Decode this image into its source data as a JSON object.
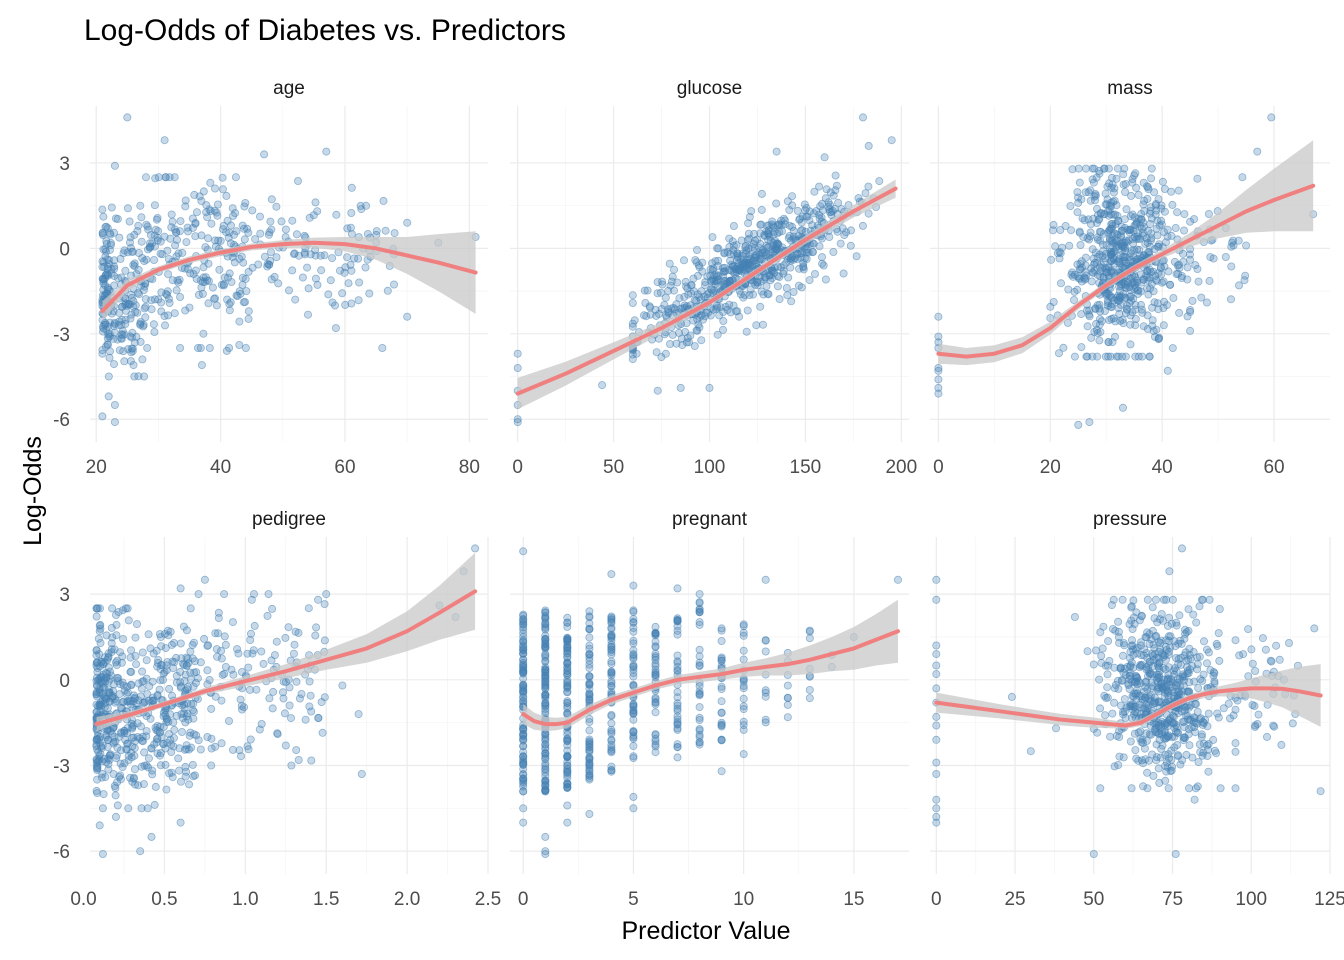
{
  "chart_data": {
    "type": "scatter",
    "title": "Log-Odds of Diabetes vs. Predictors",
    "xlabel": "Predictor Value",
    "ylabel": "Log-Odds",
    "grid": true,
    "legend": "none",
    "colors": {
      "points": "#4682b4",
      "smooth": "#f08080",
      "band": "#c8c8c8"
    },
    "y_ticks": [
      -6,
      -3,
      0,
      3
    ],
    "panels": [
      {
        "name": "age",
        "xlim": [
          19,
          83
        ],
        "x_ticks": [
          20,
          40,
          60,
          80
        ],
        "x_tick_labels": [
          "20",
          "40",
          "60",
          "80"
        ],
        "smooth": {
          "x": [
            21,
            25,
            30,
            35,
            40,
            45,
            50,
            55,
            60,
            65,
            70,
            75,
            81
          ],
          "y": [
            -2.2,
            -1.3,
            -0.75,
            -0.4,
            -0.15,
            0.05,
            0.15,
            0.2,
            0.15,
            0,
            -0.25,
            -0.5,
            -0.85
          ]
        },
        "band": [
          0.35,
          0.2,
          0.12,
          0.12,
          0.12,
          0.12,
          0.14,
          0.18,
          0.25,
          0.4,
          0.65,
          1.0,
          1.45
        ],
        "clouds": [
          {
            "x": [
              21,
              28
            ],
            "y": [
              -4.5,
              1.5
            ],
            "n": 220,
            "x_shape": "skew-low"
          },
          {
            "x": [
              28,
              45
            ],
            "y": [
              -3.5,
              2.5
            ],
            "n": 220
          },
          {
            "x": [
              45,
              68
            ],
            "y": [
              -2.8,
              2.5
            ],
            "n": 110
          }
        ],
        "points": [
          [
            25,
            4.6
          ],
          [
            31,
            3.8
          ],
          [
            57,
            3.4
          ],
          [
            47,
            3.3
          ],
          [
            23,
            2.9
          ],
          [
            75,
            0.2
          ],
          [
            81,
            0.4
          ],
          [
            70,
            0.9
          ],
          [
            66,
            -3.5
          ],
          [
            70,
            -2.4
          ],
          [
            52,
            -1.8
          ],
          [
            58,
            -1.9
          ],
          [
            37,
            -4.1
          ],
          [
            22,
            -5.2
          ],
          [
            23,
            -6.1
          ],
          [
            21,
            -5.9
          ],
          [
            23,
            -5.5
          ],
          [
            41,
            -3.6
          ],
          [
            26,
            -4.1
          ]
        ]
      },
      {
        "name": "glucose",
        "xlim": [
          -4,
          204
        ],
        "x_ticks": [
          0,
          50,
          100,
          150,
          200
        ],
        "x_tick_labels": [
          "0",
          "50",
          "100",
          "150",
          "200"
        ],
        "smooth": {
          "x": [
            0,
            25,
            50,
            75,
            100,
            125,
            150,
            175,
            197
          ],
          "y": [
            -5.1,
            -4.4,
            -3.6,
            -2.8,
            -1.9,
            -0.8,
            0.3,
            1.3,
            2.1
          ]
        },
        "band": [
          0.55,
          0.42,
          0.3,
          0.2,
          0.12,
          0.12,
          0.15,
          0.22,
          0.32
        ],
        "linear_cloud": {
          "x": [
            60,
            198
          ],
          "n": 650,
          "intercept": -5.1,
          "slope": 0.0365,
          "sd": 0.75
        },
        "points": [
          [
            0,
            -3.7
          ],
          [
            0,
            -4.2
          ],
          [
            0,
            -5.5
          ],
          [
            0,
            -6.1
          ],
          [
            0,
            -6.0
          ],
          [
            0,
            -5.0
          ],
          [
            44,
            -4.8
          ],
          [
            62,
            -3.7
          ],
          [
            70,
            -3.2
          ],
          [
            73,
            -5.0
          ],
          [
            85,
            -4.9
          ],
          [
            100,
            -4.9
          ],
          [
            180,
            4.6
          ],
          [
            160,
            3.2
          ],
          [
            135,
            3.4
          ],
          [
            183,
            3.6
          ],
          [
            195,
            3.8
          ],
          [
            140,
            -0.5
          ],
          [
            155,
            -0.9
          ],
          [
            120,
            0.3
          ]
        ]
      },
      {
        "name": "mass",
        "xlim": [
          -1.5,
          70
        ],
        "x_ticks": [
          0,
          20,
          40,
          60
        ],
        "x_tick_labels": [
          "0",
          "20",
          "40",
          "60"
        ],
        "smooth": {
          "x": [
            0,
            5,
            10,
            15,
            20,
            25,
            30,
            35,
            40,
            45,
            50,
            55,
            60,
            67
          ],
          "y": [
            -3.7,
            -3.8,
            -3.7,
            -3.4,
            -2.8,
            -2.0,
            -1.3,
            -0.7,
            -0.2,
            0.3,
            0.8,
            1.3,
            1.7,
            2.2
          ]
        },
        "band": [
          0.35,
          0.3,
          0.3,
          0.28,
          0.22,
          0.15,
          0.12,
          0.12,
          0.15,
          0.25,
          0.45,
          0.75,
          1.1,
          1.6
        ],
        "clouds": [
          {
            "x": [
              20,
              45
            ],
            "y": [
              -3.8,
              2.8
            ],
            "n": 620,
            "x_shape": "center"
          },
          {
            "x": [
              42,
              55
            ],
            "y": [
              -2.5,
              2.5
            ],
            "n": 40
          }
        ],
        "points": [
          [
            0,
            -2.4
          ],
          [
            0,
            -3.1
          ],
          [
            0,
            -3.3
          ],
          [
            0,
            -4.2
          ],
          [
            0,
            -4.9
          ],
          [
            0,
            -4.6
          ],
          [
            0,
            -5.1
          ],
          [
            0,
            -3.5
          ],
          [
            0,
            -4.3
          ],
          [
            59.5,
            4.6
          ],
          [
            57,
            3.4
          ],
          [
            67,
            1.2
          ],
          [
            52.5,
            0.2
          ],
          [
            55,
            0.1
          ],
          [
            49,
            0.3
          ],
          [
            27,
            -6.1
          ],
          [
            33,
            -5.6
          ],
          [
            25,
            -6.2
          ],
          [
            41,
            -4.3
          ],
          [
            48,
            -1.9
          ],
          [
            45,
            -2.9
          ]
        ]
      },
      {
        "name": "pedigree",
        "xlim": [
          0.04,
          2.5
        ],
        "x_ticks": [
          0,
          0.5,
          1.0,
          1.5,
          2.0,
          2.5
        ],
        "x_tick_labels": [
          "0.0",
          "0.5",
          "1.0",
          "1.5",
          "2.0",
          "2.5"
        ],
        "smooth": {
          "x": [
            0.08,
            0.3,
            0.5,
            0.75,
            1.0,
            1.25,
            1.5,
            1.75,
            2.0,
            2.2,
            2.42
          ],
          "y": [
            -1.55,
            -1.2,
            -0.85,
            -0.4,
            -0.05,
            0.3,
            0.7,
            1.1,
            1.7,
            2.35,
            3.1
          ]
        },
        "band": [
          0.25,
          0.12,
          0.1,
          0.12,
          0.18,
          0.25,
          0.35,
          0.5,
          0.7,
          0.95,
          1.35
        ],
        "clouds": [
          {
            "x": [
              0.08,
              0.7
            ],
            "y": [
              -4.5,
              2.5
            ],
            "n": 520,
            "x_shape": "skew-low"
          },
          {
            "x": [
              0.6,
              1.5
            ],
            "y": [
              -3.0,
              3.0
            ],
            "n": 150
          }
        ],
        "points": [
          [
            2.42,
            4.6
          ],
          [
            2.35,
            3.8
          ],
          [
            2.2,
            2.6
          ],
          [
            2.3,
            2.2
          ],
          [
            1.5,
            3.0
          ],
          [
            1.45,
            2.8
          ],
          [
            1.72,
            -3.3
          ],
          [
            1.7,
            -1.2
          ],
          [
            1.6,
            -0.2
          ],
          [
            1.2,
            -1.9
          ],
          [
            1.25,
            -2.3
          ],
          [
            0.12,
            -6.1
          ],
          [
            0.35,
            -6.0
          ],
          [
            0.42,
            -5.5
          ],
          [
            0.6,
            -5.0
          ],
          [
            0.1,
            -5.1
          ],
          [
            0.2,
            -4.8
          ],
          [
            0.75,
            3.5
          ],
          [
            0.6,
            3.2
          ]
        ]
      },
      {
        "name": "pregnant",
        "xlim": [
          -0.6,
          17.5
        ],
        "x_ticks": [
          0,
          5,
          10,
          15
        ],
        "x_tick_labels": [
          "0",
          "5",
          "10",
          "15"
        ],
        "smooth": {
          "x": [
            0,
            0.5,
            1,
            1.5,
            2,
            3,
            4,
            5,
            6,
            7,
            8,
            9,
            10,
            11,
            12,
            13,
            14,
            15,
            16,
            17
          ],
          "y": [
            -1.2,
            -1.45,
            -1.55,
            -1.55,
            -1.5,
            -1.05,
            -0.7,
            -0.45,
            -0.2,
            0,
            0.1,
            0.2,
            0.35,
            0.45,
            0.55,
            0.7,
            0.9,
            1.1,
            1.4,
            1.7
          ]
        },
        "band": [
          0.35,
          0.3,
          0.25,
          0.22,
          0.2,
          0.18,
          0.16,
          0.15,
          0.15,
          0.16,
          0.18,
          0.2,
          0.25,
          0.3,
          0.4,
          0.5,
          0.6,
          0.75,
          0.9,
          1.1
        ],
        "columns": [
          {
            "x": 0,
            "n": 95,
            "y": [
              -4.0,
              2.3
            ]
          },
          {
            "x": 1,
            "n": 110,
            "y": [
              -4.0,
              2.5
            ]
          },
          {
            "x": 2,
            "n": 90,
            "y": [
              -3.8,
              2.2
            ]
          },
          {
            "x": 3,
            "n": 65,
            "y": [
              -3.5,
              2.5
            ]
          },
          {
            "x": 4,
            "n": 55,
            "y": [
              -3.3,
              2.3
            ]
          },
          {
            "x": 5,
            "n": 45,
            "y": [
              -3.0,
              2.5
            ]
          },
          {
            "x": 6,
            "n": 40,
            "y": [
              -2.6,
              2.0
            ]
          },
          {
            "x": 7,
            "n": 35,
            "y": [
              -2.8,
              2.8
            ]
          },
          {
            "x": 8,
            "n": 30,
            "y": [
              -2.3,
              2.8
            ]
          },
          {
            "x": 9,
            "n": 25,
            "y": [
              -2.2,
              2.2
            ]
          },
          {
            "x": 10,
            "n": 18,
            "y": [
              -1.8,
              2.0
            ]
          },
          {
            "x": 11,
            "n": 9,
            "y": [
              -1.5,
              1.5
            ]
          },
          {
            "x": 12,
            "n": 8,
            "y": [
              -1.4,
              1.3
            ]
          },
          {
            "x": 13,
            "n": 8,
            "y": [
              -1.0,
              2.0
            ]
          },
          {
            "x": 14,
            "n": 2,
            "y": [
              0.0,
              1.0
            ]
          },
          {
            "x": 15,
            "n": 1,
            "y": [
              1.5,
              1.5
            ]
          },
          {
            "x": 17,
            "n": 1,
            "y": [
              3.5,
              3.5
            ]
          }
        ],
        "points": [
          [
            0,
            4.5
          ],
          [
            0,
            -4.5
          ],
          [
            0,
            -5.0
          ],
          [
            1,
            -5.5
          ],
          [
            1,
            -6.0
          ],
          [
            1,
            -6.1
          ],
          [
            2,
            -4.4
          ],
          [
            2,
            -5.0
          ],
          [
            3,
            -4.7
          ],
          [
            5,
            -4.5
          ],
          [
            5,
            -4.1
          ],
          [
            4,
            3.7
          ],
          [
            5,
            3.3
          ],
          [
            7,
            3.2
          ],
          [
            8,
            3.0
          ],
          [
            11,
            3.5
          ],
          [
            9,
            -3.2
          ],
          [
            10,
            -2.6
          ]
        ]
      },
      {
        "name": "pressure",
        "xlim": [
          -2,
          125
        ],
        "x_ticks": [
          0,
          25,
          50,
          75,
          100,
          125
        ],
        "x_tick_labels": [
          "0",
          "25",
          "50",
          "75",
          "100",
          "125"
        ],
        "smooth": {
          "x": [
            0,
            10,
            20,
            30,
            40,
            50,
            55,
            60,
            65,
            70,
            75,
            80,
            85,
            90,
            95,
            100,
            105,
            110,
            115,
            122
          ],
          "y": [
            -0.8,
            -0.95,
            -1.1,
            -1.25,
            -1.4,
            -1.5,
            -1.55,
            -1.6,
            -1.5,
            -1.2,
            -0.9,
            -0.65,
            -0.5,
            -0.4,
            -0.35,
            -0.3,
            -0.3,
            -0.32,
            -0.4,
            -0.55
          ]
        },
        "band": [
          0.35,
          0.3,
          0.25,
          0.22,
          0.2,
          0.18,
          0.15,
          0.12,
          0.12,
          0.12,
          0.12,
          0.12,
          0.14,
          0.18,
          0.25,
          0.35,
          0.5,
          0.65,
          0.85,
          1.1
        ],
        "clouds": [
          {
            "x": [
              50,
              95
            ],
            "y": [
              -3.8,
              2.8
            ],
            "n": 620,
            "x_shape": "center"
          },
          {
            "x": [
              95,
              115
            ],
            "y": [
              -2.5,
              2.2
            ],
            "n": 40
          }
        ],
        "points": [
          [
            0,
            3.5
          ],
          [
            0,
            2.8
          ],
          [
            0,
            1.2
          ],
          [
            0,
            0.9
          ],
          [
            0,
            0.5
          ],
          [
            0,
            0.2
          ],
          [
            0,
            -0.3
          ],
          [
            0,
            -0.8
          ],
          [
            0,
            -1.3
          ],
          [
            0,
            -2.1
          ],
          [
            0,
            -2.9
          ],
          [
            0,
            -3.3
          ],
          [
            0,
            -4.5
          ],
          [
            0,
            -4.8
          ],
          [
            0,
            -5.0
          ],
          [
            0,
            -4.2
          ],
          [
            0,
            -1.6
          ],
          [
            24,
            -0.6
          ],
          [
            30,
            -2.5
          ],
          [
            38,
            -1.7
          ],
          [
            44,
            2.2
          ],
          [
            48,
            1.0
          ],
          [
            52,
            -1.0
          ],
          [
            50,
            -6.1
          ],
          [
            76,
            -6.1
          ],
          [
            82,
            -4.2
          ],
          [
            78,
            4.6
          ],
          [
            74,
            3.8
          ],
          [
            120,
            1.8
          ],
          [
            122,
            -3.9
          ],
          [
            107,
            -0.5
          ],
          [
            105,
            -2.0
          ]
        ]
      }
    ]
  }
}
